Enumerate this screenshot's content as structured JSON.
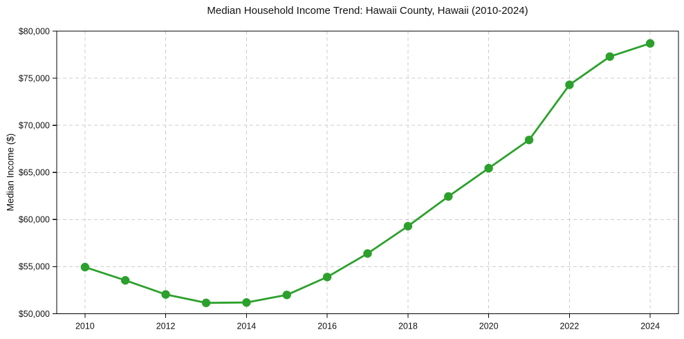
{
  "chart_data": {
    "type": "line",
    "title": "Median Household Income Trend: Hawaii County, Hawaii (2010-2024)",
    "xlabel": "",
    "ylabel": "Median Income ($)",
    "x": [
      2010,
      2011,
      2012,
      2013,
      2014,
      2015,
      2016,
      2017,
      2018,
      2019,
      2020,
      2021,
      2022,
      2023,
      2024
    ],
    "values": [
      54950,
      53550,
      52050,
      51150,
      51200,
      52000,
      53900,
      56400,
      59300,
      62450,
      65450,
      68450,
      74300,
      77300,
      78700
    ],
    "series_name": "Median household income",
    "ylim": [
      50000,
      80000
    ],
    "yticks": [
      50000,
      55000,
      60000,
      65000,
      70000,
      75000,
      80000
    ],
    "ytick_labels": [
      "$50,000",
      "$55,000",
      "$60,000",
      "$65,000",
      "$70,000",
      "$75,000",
      "$80,000"
    ],
    "xticks": [
      2010,
      2012,
      2014,
      2016,
      2018,
      2020,
      2022,
      2024
    ],
    "xtick_labels": [
      "2010",
      "2012",
      "2014",
      "2016",
      "2018",
      "2020",
      "2022",
      "2024"
    ],
    "line_color": "#2ca02c",
    "marker": "circle",
    "grid": true,
    "legend_position": "none",
    "background_color": "#ffffff"
  }
}
